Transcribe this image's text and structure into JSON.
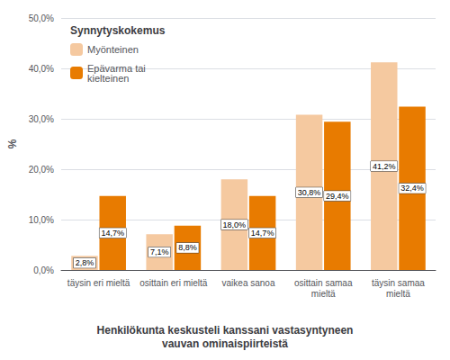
{
  "chart_data": {
    "type": "bar",
    "categories": [
      "täysin eri mieltä",
      "osittain eri mieltä",
      "vaikea sanoa",
      "osittain samaa\nmieltä",
      "täysin samaa\nmieltä"
    ],
    "series": [
      {
        "name": "Myönteinen",
        "color": "#F5C9A0",
        "values": [
          2.8,
          7.1,
          18.0,
          30.8,
          41.2
        ],
        "value_labels": [
          "2,8%",
          "7,1%",
          "18,0%",
          "30,8%",
          "41,2%"
        ]
      },
      {
        "name": "Epävarma tai\nkielteinen",
        "color": "#E87B00",
        "values": [
          14.7,
          8.8,
          14.7,
          29.4,
          32.4
        ],
        "value_labels": [
          "14,7%",
          "8,8%",
          "14,7%",
          "29,4%",
          "32,4%"
        ]
      }
    ],
    "xlabel": "Henkilökunta keskusteli kanssani vastasyntyneen\nvauvan ominaispiirteistä",
    "ylabel": "%",
    "legend_title": "Synnytyskokemus",
    "ylim": [
      0,
      50
    ],
    "yticks": [
      {
        "value": 0,
        "label": "0,0%"
      },
      {
        "value": 10,
        "label": "10,0%"
      },
      {
        "value": 20,
        "label": "20,0%"
      },
      {
        "value": 30,
        "label": "30,0%"
      },
      {
        "value": 40,
        "label": "40,0%"
      },
      {
        "value": 50,
        "label": "50,0%"
      }
    ],
    "grid": true,
    "legend": "upper left",
    "data_labels": true
  }
}
